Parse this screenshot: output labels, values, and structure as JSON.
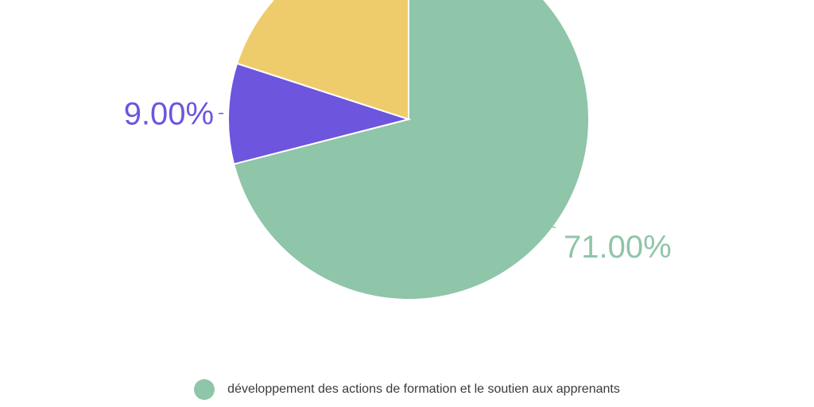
{
  "chart_data": {
    "type": "pie",
    "slices": [
      {
        "label": "développement des actions de formation et le soutien aux apprenants",
        "value": 71.0,
        "display": "71.00%",
        "color": "#8fc5a8",
        "show_label": true
      },
      {
        "label": "",
        "value": 9.0,
        "display": "9.00%",
        "color": "#6d55de",
        "show_label": true
      },
      {
        "label": "",
        "value": 20.0,
        "display": "",
        "color": "#efcc6b",
        "show_label": false
      }
    ],
    "legend": {
      "placement": "bottom",
      "entries": [
        {
          "label": "développement des actions de formation et le soutien aux apprenants",
          "color": "#8fc5a8"
        }
      ]
    }
  }
}
